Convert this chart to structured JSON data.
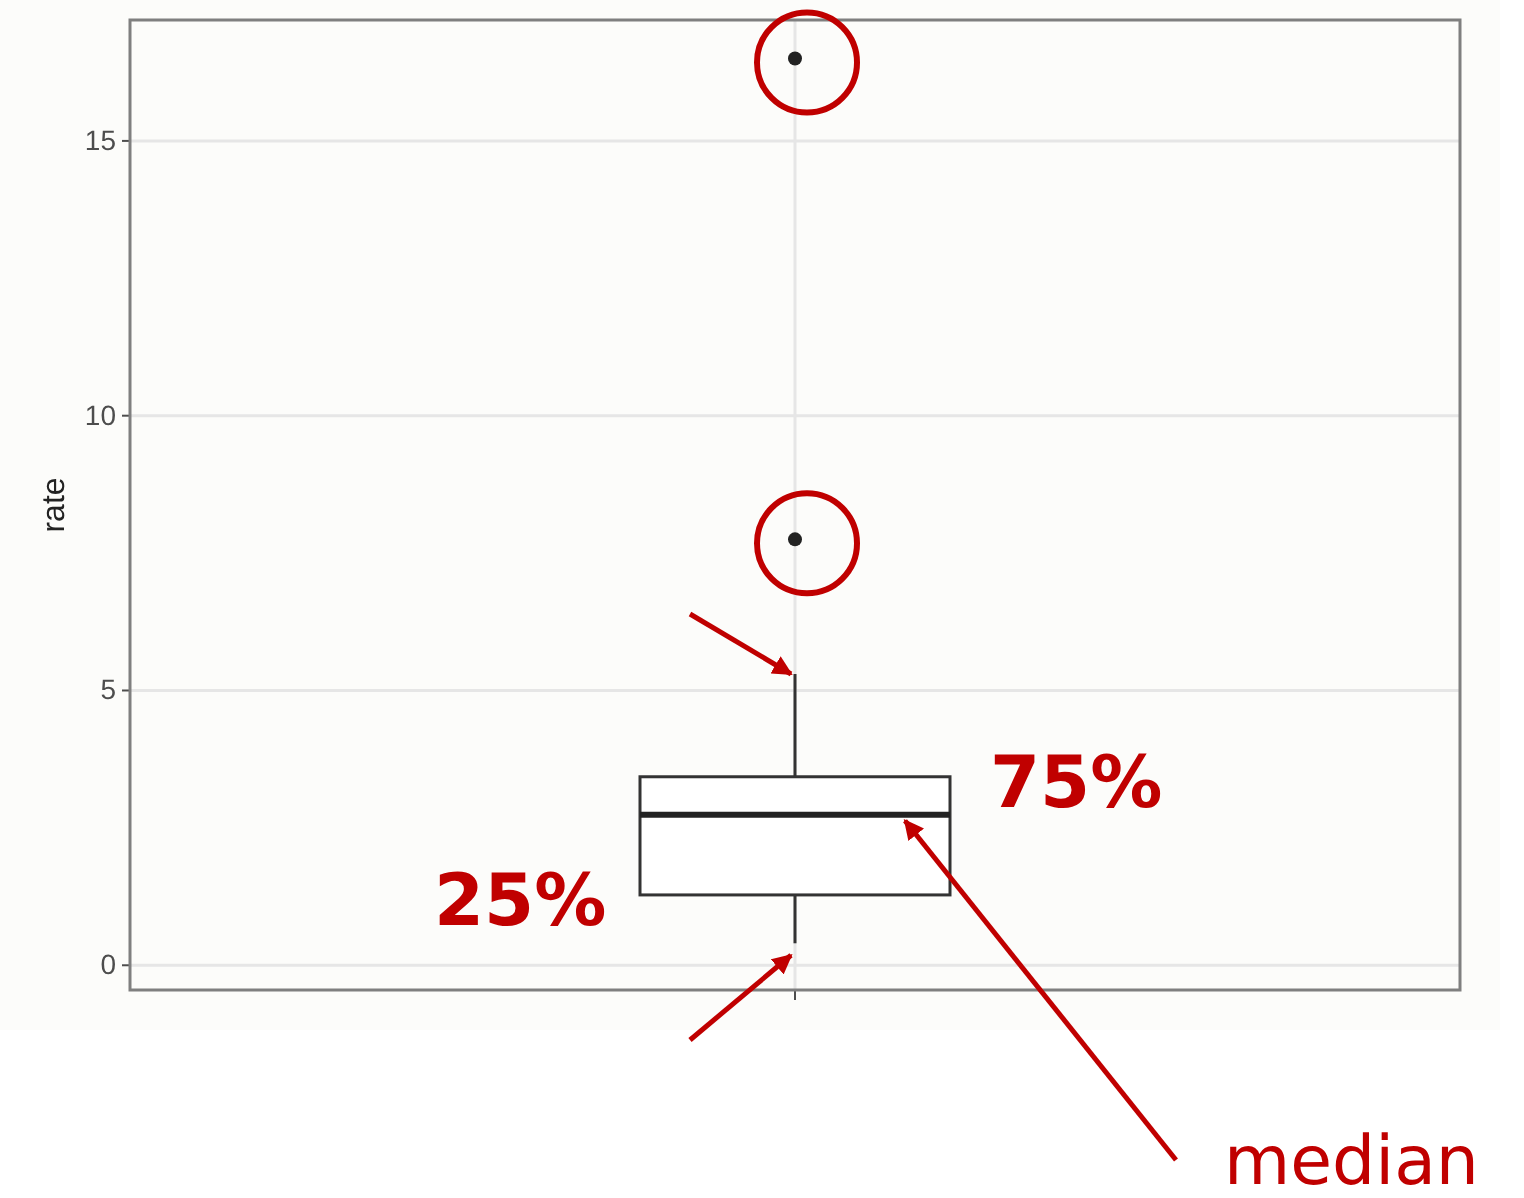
{
  "chart_data": {
    "type": "box",
    "ylabel": "rate",
    "categories": [
      null
    ],
    "boxes": [
      {
        "low": 0.4,
        "q1": 1.28,
        "median": 2.74,
        "q3": 3.43,
        "high": 5.3,
        "outliers": [
          7.75,
          16.5
        ]
      }
    ],
    "ylim": [
      -0.45,
      17.2
    ],
    "yticks": [
      0,
      5,
      10,
      15
    ],
    "grid": true,
    "annotations": [
      "75%",
      "25%",
      "median"
    ]
  }
}
